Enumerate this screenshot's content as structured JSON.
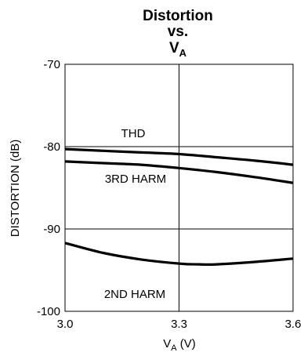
{
  "chart_data": {
    "type": "line",
    "title_lines": [
      "Distortion",
      "vs."
    ],
    "title_var": {
      "main": "V",
      "sub": "A"
    },
    "xlabel": {
      "main": "V",
      "sub": "A",
      "suffix": " (V)"
    },
    "ylabel": "DISTORTION (dB)",
    "xlim": [
      3.0,
      3.6
    ],
    "ylim": [
      -100,
      -70
    ],
    "x_ticks": [
      "3.0",
      "3.3",
      "3.6"
    ],
    "x_tick_values": [
      3.0,
      3.3,
      3.6
    ],
    "y_ticks": [
      "-70",
      "-80",
      "-90",
      "-100"
    ],
    "y_tick_values": [
      -70,
      -80,
      -90,
      -100
    ],
    "grid": true,
    "series": [
      {
        "name": "THD",
        "x": [
          3.0,
          3.1,
          3.2,
          3.3,
          3.4,
          3.5,
          3.6
        ],
        "y": [
          -80.3,
          -80.5,
          -80.7,
          -80.9,
          -81.3,
          -81.7,
          -82.2
        ]
      },
      {
        "name": "3RD HARM",
        "x": [
          3.0,
          3.1,
          3.2,
          3.3,
          3.4,
          3.5,
          3.6
        ],
        "y": [
          -81.8,
          -82.0,
          -82.2,
          -82.6,
          -83.1,
          -83.7,
          -84.4
        ]
      },
      {
        "name": "2ND HARM",
        "x": [
          3.0,
          3.1,
          3.2,
          3.3,
          3.35,
          3.4,
          3.5,
          3.6
        ],
        "y": [
          -91.7,
          -92.9,
          -93.7,
          -94.2,
          -94.3,
          -94.3,
          -94.0,
          -93.6
        ]
      }
    ]
  }
}
